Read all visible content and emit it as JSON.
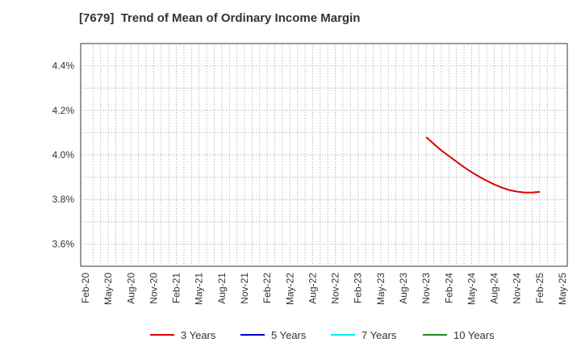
{
  "chart_data": {
    "type": "line",
    "title": "[7679]  Trend of Mean of Ordinary Income Margin",
    "xlabel": "",
    "ylabel": "",
    "x_tick_labels": [
      "Feb-20",
      "May-20",
      "Aug-20",
      "Nov-20",
      "Feb-21",
      "May-21",
      "Aug-21",
      "Nov-21",
      "Feb-22",
      "May-22",
      "Aug-22",
      "Nov-22",
      "Feb-23",
      "May-23",
      "Aug-23",
      "Nov-23",
      "Feb-24",
      "May-24",
      "Aug-24",
      "Nov-24",
      "Feb-25",
      "May-25"
    ],
    "y_ticks": [
      3.6,
      3.8,
      4.0,
      4.2,
      4.4
    ],
    "y_tick_labels": [
      "3.6%",
      "3.8%",
      "4.0%",
      "4.2%",
      "4.4%"
    ],
    "ylim": [
      3.5,
      4.5
    ],
    "grid": true,
    "legend_position": "bottom",
    "series": [
      {
        "name": "3 Years",
        "color": "#dd0000",
        "points": [
          {
            "x": "Nov-23",
            "y": 4.08
          },
          {
            "x": "Dec-23",
            "y": 4.05
          },
          {
            "x": "Jan-24",
            "y": 4.02
          },
          {
            "x": "Feb-24",
            "y": 3.995
          },
          {
            "x": "Mar-24",
            "y": 3.97
          },
          {
            "x": "Apr-24",
            "y": 3.945
          },
          {
            "x": "May-24",
            "y": 3.923
          },
          {
            "x": "Jun-24",
            "y": 3.902
          },
          {
            "x": "Jul-24",
            "y": 3.884
          },
          {
            "x": "Aug-24",
            "y": 3.867
          },
          {
            "x": "Sep-24",
            "y": 3.853
          },
          {
            "x": "Oct-24",
            "y": 3.842
          },
          {
            "x": "Nov-24",
            "y": 3.835
          },
          {
            "x": "Dec-24",
            "y": 3.831
          },
          {
            "x": "Jan-25",
            "y": 3.831
          },
          {
            "x": "Feb-25",
            "y": 3.834
          }
        ]
      },
      {
        "name": "5 Years",
        "color": "#0000cc",
        "points": []
      },
      {
        "name": "7 Years",
        "color": "#00eeee",
        "points": []
      },
      {
        "name": "10 Years",
        "color": "#228822",
        "points": []
      }
    ]
  }
}
